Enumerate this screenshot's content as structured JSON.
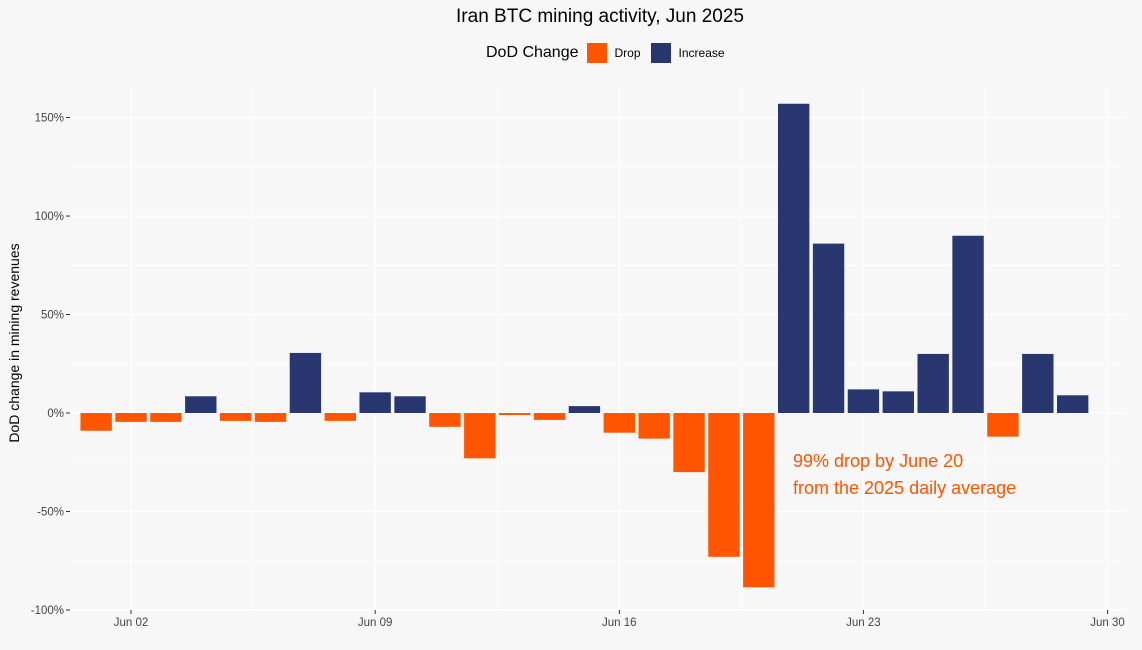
{
  "chart_data": {
    "type": "bar",
    "title": "Iran BTC mining activity, Jun 2025",
    "xlabel": "",
    "ylabel": "DoD change in mining revenues",
    "legend": {
      "title": "DoD Change",
      "items": [
        {
          "label": "Drop",
          "color": "#ff5500"
        },
        {
          "label": "Increase",
          "color": "#283770"
        }
      ],
      "position": "top"
    },
    "ylim": [
      -100,
      165
    ],
    "y_ticks": [
      {
        "value": 150,
        "label": "150%"
      },
      {
        "value": 100,
        "label": "100%"
      },
      {
        "value": 50,
        "label": "50%"
      },
      {
        "value": 0,
        "label": "0%"
      },
      {
        "value": -50,
        "label": "-50%"
      },
      {
        "value": -100,
        "label": "-100%"
      }
    ],
    "x_ticks": [
      {
        "day": 2,
        "label": "Jun 02"
      },
      {
        "day": 9,
        "label": "Jun 09"
      },
      {
        "day": 16,
        "label": "Jun 16"
      },
      {
        "day": 23,
        "label": "Jun 23"
      },
      {
        "day": 30,
        "label": "Jun 30"
      }
    ],
    "xlim": [
      0.25,
      30.5
    ],
    "days": [
      1,
      2,
      3,
      4,
      5,
      6,
      7,
      8,
      9,
      10,
      11,
      12,
      13,
      14,
      15,
      16,
      17,
      18,
      19,
      20,
      21,
      22,
      23,
      24,
      25,
      26,
      27,
      28,
      29
    ],
    "values": [
      -9,
      -4.5,
      -4.5,
      8.5,
      -4,
      -4.5,
      30.5,
      -4,
      10.5,
      8.5,
      -7,
      -23,
      -1,
      -3.5,
      3.5,
      -10,
      -13,
      -30,
      -73,
      -88.5,
      157,
      86,
      12,
      11,
      30,
      90,
      -12,
      30,
      9
    ],
    "annotation": {
      "lines": [
        "99% drop by June 20",
        "from the 2025 daily average"
      ],
      "color": "#ff5500"
    }
  }
}
